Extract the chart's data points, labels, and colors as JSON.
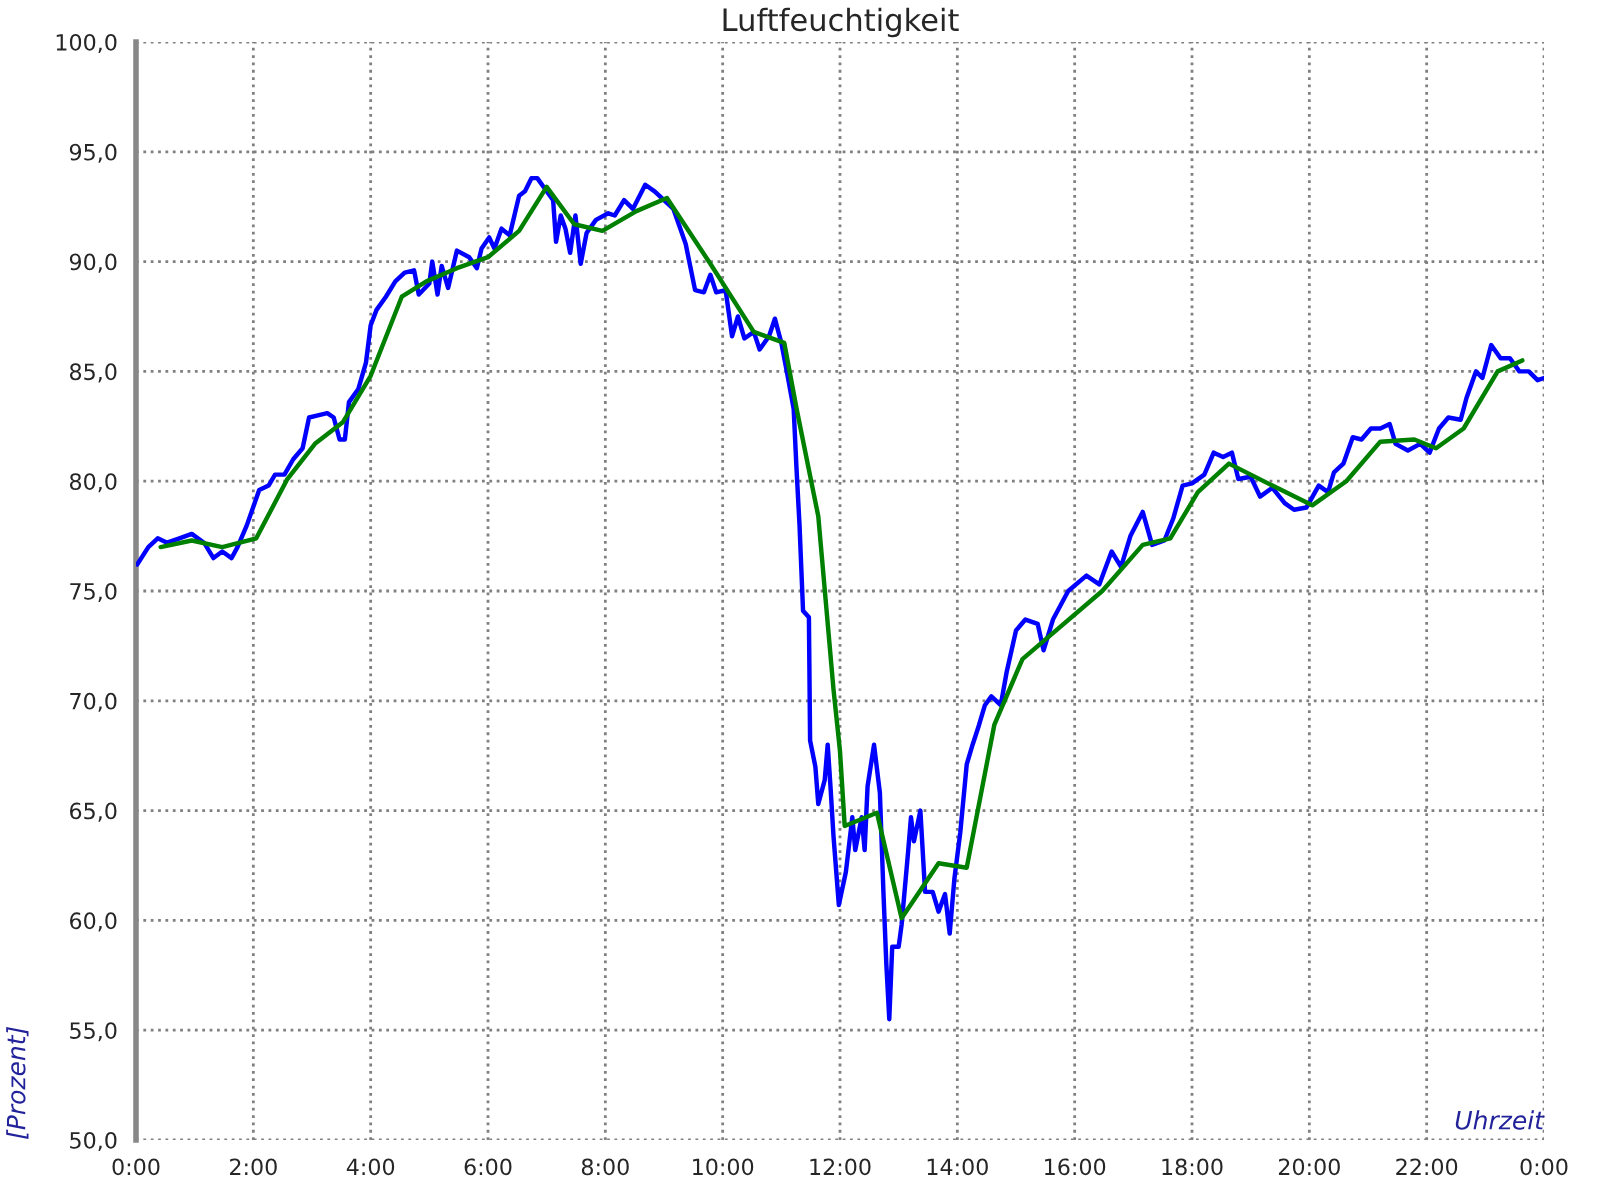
{
  "chart_data": {
    "type": "line",
    "title": "Luftfeuchtigkeit",
    "xlabel": "Uhrzeit",
    "ylabel": "[Prozent]",
    "xlim": [
      0,
      24
    ],
    "ylim": [
      50,
      100
    ],
    "xticks": [
      {
        "value": 0,
        "label": "0:00"
      },
      {
        "value": 2,
        "label": "2:00"
      },
      {
        "value": 4,
        "label": "4:00"
      },
      {
        "value": 6,
        "label": "6:00"
      },
      {
        "value": 8,
        "label": "8:00"
      },
      {
        "value": 10,
        "label": "10:00"
      },
      {
        "value": 12,
        "label": "12:00"
      },
      {
        "value": 14,
        "label": "14:00"
      },
      {
        "value": 16,
        "label": "16:00"
      },
      {
        "value": 18,
        "label": "18:00"
      },
      {
        "value": 20,
        "label": "20:00"
      },
      {
        "value": 22,
        "label": "22:00"
      },
      {
        "value": 24,
        "label": "0:00"
      }
    ],
    "yticks": [
      {
        "value": 50,
        "label": "50,0"
      },
      {
        "value": 55,
        "label": "55,0"
      },
      {
        "value": 60,
        "label": "60,0"
      },
      {
        "value": 65,
        "label": "65,0"
      },
      {
        "value": 70,
        "label": "70,0"
      },
      {
        "value": 75,
        "label": "75,0"
      },
      {
        "value": 80,
        "label": "80,0"
      },
      {
        "value": 85,
        "label": "85,0"
      },
      {
        "value": 90,
        "label": "90,0"
      },
      {
        "value": 95,
        "label": "95,0"
      },
      {
        "value": 100,
        "label": "100,0"
      }
    ],
    "grid": true,
    "legend": false,
    "marker": "none",
    "line_style": "solid",
    "series": [
      {
        "color": "#0000ff",
        "x": [
          0.02,
          0.21,
          0.37,
          0.53,
          0.74,
          0.95,
          1.16,
          1.32,
          1.47,
          1.63,
          1.73,
          1.89,
          2.1,
          2.26,
          2.37,
          2.53,
          2.68,
          2.84,
          2.95,
          3.1,
          3.26,
          3.37,
          3.47,
          3.56,
          3.63,
          3.79,
          3.92,
          4.0,
          4.1,
          4.26,
          4.42,
          4.58,
          4.74,
          4.82,
          5.0,
          5.05,
          5.14,
          5.21,
          5.32,
          5.47,
          5.68,
          5.81,
          5.89,
          6.02,
          6.11,
          6.23,
          6.37,
          6.53,
          6.63,
          6.74,
          6.84,
          7.0,
          7.11,
          7.16,
          7.24,
          7.32,
          7.4,
          7.49,
          7.58,
          7.68,
          7.84,
          8.05,
          8.16,
          8.32,
          8.47,
          8.68,
          8.84,
          9.0,
          9.16,
          9.37,
          9.53,
          9.68,
          9.79,
          9.89,
          10.05,
          10.16,
          10.26,
          10.37,
          10.53,
          10.63,
          10.79,
          10.89,
          11.0,
          11.1,
          11.21,
          11.26,
          11.31,
          11.37,
          11.47,
          11.49,
          11.58,
          11.63,
          11.74,
          11.79,
          11.84,
          11.89,
          11.98,
          12.1,
          12.21,
          12.26,
          12.37,
          12.42,
          12.47,
          12.58,
          12.68,
          12.74,
          12.79,
          12.84,
          12.89,
          13.0,
          13.05,
          13.16,
          13.21,
          13.26,
          13.37,
          13.45,
          13.58,
          13.68,
          13.79,
          13.87,
          13.95,
          14.05,
          14.16,
          14.26,
          14.37,
          14.47,
          14.58,
          14.74,
          14.84,
          15.0,
          15.16,
          15.37,
          15.47,
          15.63,
          15.89,
          16.2,
          16.42,
          16.63,
          16.79,
          16.95,
          17.16,
          17.32,
          17.53,
          17.68,
          17.84,
          18.0,
          18.21,
          18.37,
          18.53,
          18.68,
          18.79,
          19.0,
          19.16,
          19.37,
          19.58,
          19.74,
          19.95,
          20.16,
          20.32,
          20.42,
          20.58,
          20.74,
          20.89,
          21.05,
          21.21,
          21.37,
          21.47,
          21.68,
          21.89,
          22.05,
          22.21,
          22.37,
          22.58,
          22.68,
          22.84,
          22.95,
          23.1,
          23.26,
          23.42,
          23.58,
          23.74,
          23.89,
          24.0
        ],
        "values": [
          76.2,
          77.0,
          77.4,
          77.2,
          77.4,
          77.6,
          77.2,
          76.5,
          76.8,
          76.5,
          77.0,
          78.0,
          79.6,
          79.8,
          80.3,
          80.3,
          81.0,
          81.5,
          82.9,
          83.0,
          83.1,
          82.9,
          81.9,
          81.9,
          83.6,
          84.2,
          85.4,
          87.1,
          87.8,
          88.4,
          89.1,
          89.5,
          89.6,
          88.5,
          89.0,
          90.0,
          88.5,
          89.8,
          88.8,
          90.5,
          90.2,
          89.7,
          90.6,
          91.1,
          90.6,
          91.5,
          91.2,
          93.0,
          93.2,
          93.8,
          93.8,
          93.2,
          92.8,
          90.9,
          92.1,
          91.5,
          90.4,
          92.1,
          89.9,
          91.3,
          91.9,
          92.2,
          92.1,
          92.8,
          92.4,
          93.5,
          93.2,
          92.8,
          92.4,
          90.8,
          88.7,
          88.6,
          89.4,
          88.6,
          88.7,
          86.6,
          87.5,
          86.5,
          86.8,
          86.0,
          86.6,
          87.4,
          86.3,
          84.9,
          83.3,
          80.5,
          78.0,
          74.1,
          73.8,
          68.2,
          67.0,
          65.3,
          66.4,
          68.0,
          66.0,
          63.8,
          60.7,
          62.2,
          64.7,
          63.2,
          64.7,
          63.2,
          66.1,
          68.0,
          65.8,
          61.3,
          58.0,
          55.5,
          58.8,
          58.8,
          59.8,
          63.1,
          64.7,
          63.6,
          65.0,
          61.3,
          61.3,
          60.4,
          61.2,
          59.4,
          61.9,
          64.0,
          67.1,
          68.0,
          68.9,
          69.8,
          70.2,
          69.8,
          71.3,
          73.2,
          73.7,
          73.5,
          72.3,
          73.7,
          75.0,
          75.7,
          75.3,
          76.8,
          76.1,
          77.5,
          78.6,
          77.1,
          77.3,
          78.3,
          79.8,
          79.9,
          80.3,
          81.3,
          81.1,
          81.3,
          80.1,
          80.2,
          79.3,
          79.7,
          79.0,
          78.7,
          78.8,
          79.8,
          79.5,
          80.4,
          80.8,
          82.0,
          81.9,
          82.4,
          82.4,
          82.6,
          81.7,
          81.4,
          81.7,
          81.3,
          82.4,
          82.9,
          82.8,
          83.8,
          85.0,
          84.7,
          86.2,
          85.6,
          85.6,
          85.0,
          85.0,
          84.6,
          84.7
        ]
      },
      {
        "color": "#008000",
        "x": [
          0.42,
          0.95,
          1.47,
          2.05,
          2.58,
          3.05,
          3.53,
          4.0,
          4.53,
          4.95,
          5.47,
          6.0,
          6.53,
          7.0,
          7.47,
          7.95,
          8.53,
          9.05,
          9.79,
          10.53,
          11.05,
          11.26,
          11.63,
          11.89,
          12.0,
          12.08,
          12.63,
          13.05,
          13.68,
          14.16,
          14.63,
          15.11,
          16.47,
          17.16,
          17.63,
          18.1,
          18.63,
          19.37,
          20.05,
          20.63,
          21.21,
          21.79,
          22.16,
          22.63,
          23.21,
          23.63
        ],
        "values": [
          77.0,
          77.3,
          77.0,
          77.4,
          80.1,
          81.7,
          82.7,
          84.8,
          88.4,
          89.1,
          89.7,
          90.2,
          91.4,
          93.4,
          91.7,
          91.4,
          92.3,
          92.9,
          89.9,
          86.8,
          86.3,
          83.3,
          78.4,
          70.5,
          67.7,
          64.3,
          64.9,
          60.1,
          62.6,
          62.4,
          68.9,
          71.9,
          75.0,
          77.1,
          77.4,
          79.5,
          80.8,
          79.8,
          78.9,
          80.0,
          81.8,
          81.9,
          81.5,
          82.4,
          85.0,
          85.5
        ]
      }
    ]
  }
}
